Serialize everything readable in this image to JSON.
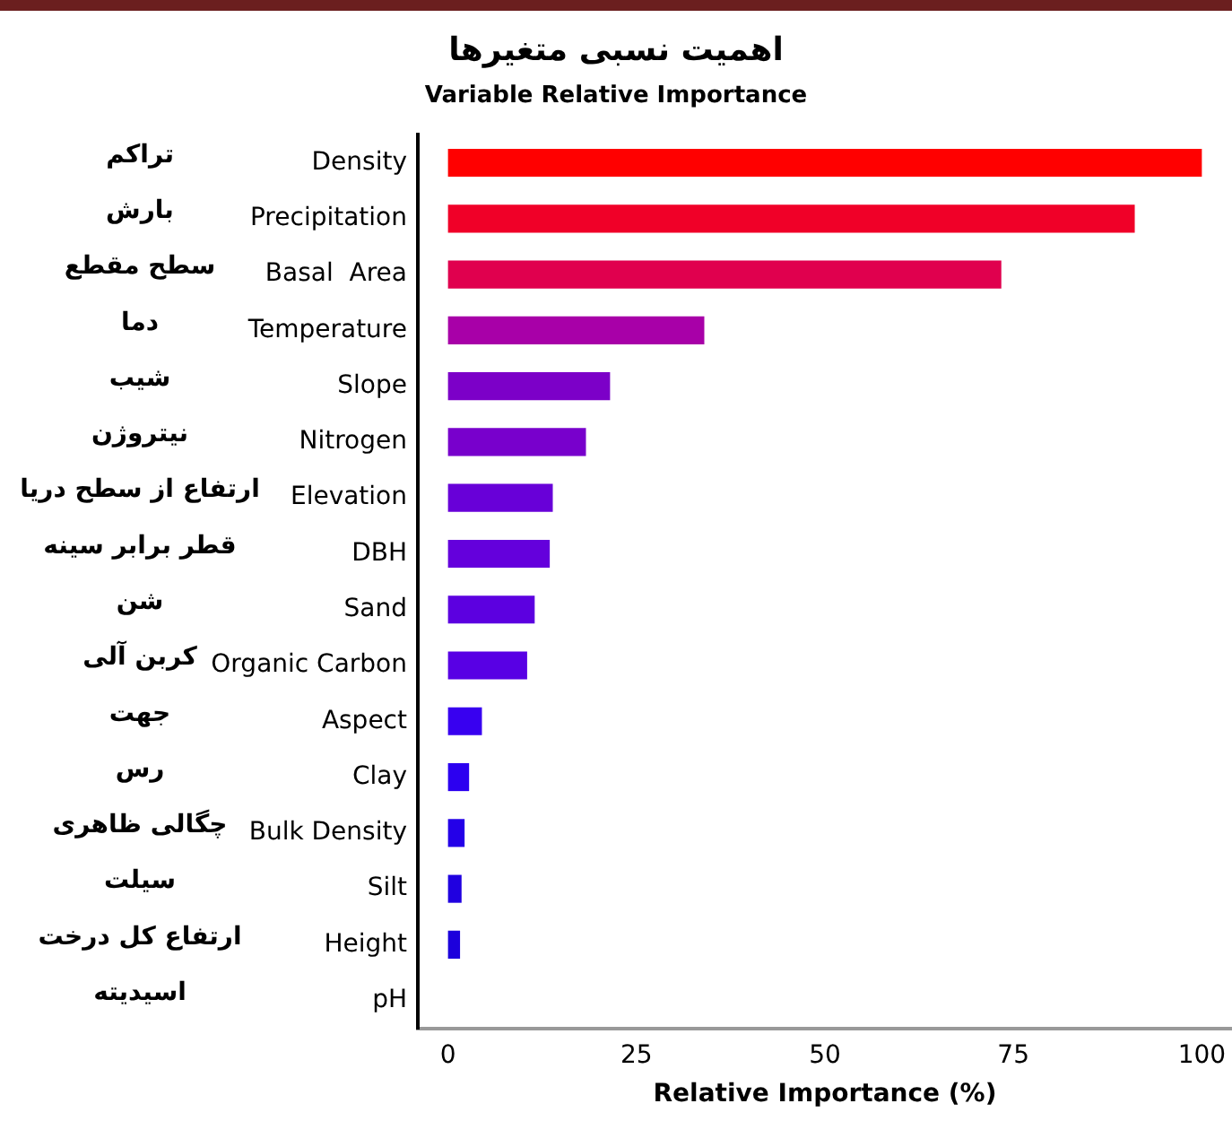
{
  "chart_data": {
    "type": "bar",
    "orientation": "horizontal",
    "title": "اهمیت نسبی متغیرها",
    "subtitle": "Variable Relative Importance",
    "xlabel": "Relative Importance (%)",
    "categories": [
      "Density",
      "Precipitation",
      "Basal  Area",
      "Temperature",
      "Slope",
      "Nitrogen",
      "Elevation",
      "DBH",
      "Sand",
      "Organic Carbon",
      "Aspect",
      "Clay",
      "Bulk Density",
      "Silt",
      "Height",
      "pH"
    ],
    "y2_categories": [
      "تراکم",
      "بارش",
      "سطح مقطع",
      "دما",
      "شیب",
      "نیتروژن",
      "ارتفاع از سطح دریا",
      "قطر برابر سینه",
      "شن",
      "کربن آلی",
      "جهت",
      "رس",
      "چگالی ظاهری",
      "سیلت",
      "ارتفاع کل درخت",
      "اسیدیته"
    ],
    "values": [
      100,
      91.1,
      73.4,
      34.0,
      21.5,
      18.3,
      13.9,
      13.5,
      11.5,
      10.5,
      4.5,
      2.8,
      2.2,
      1.8,
      1.6,
      0
    ],
    "colors": [
      "#ff0000",
      "#f00028",
      "#e0004e",
      "#a800a8",
      "#7c00c8",
      "#7800cc",
      "#6800d8",
      "#6400dc",
      "#5c00e0",
      "#5800e4",
      "#3800f0",
      "#2c00f0",
      "#2400e8",
      "#2000e0",
      "#1c00dc",
      "#1800d8"
    ],
    "xlim": [
      -4,
      104
    ],
    "xticks": [
      0,
      25,
      50,
      75,
      100
    ],
    "grid": false,
    "legend": false
  }
}
